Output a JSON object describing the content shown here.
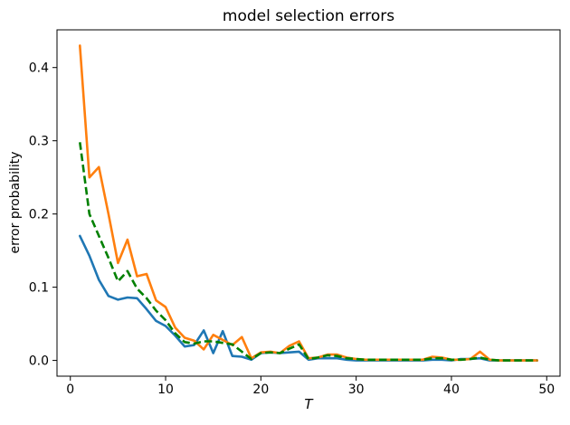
{
  "figure": {
    "title": "model selection errors",
    "xlabel": "T",
    "ylabel": "error probability"
  },
  "chart_data": {
    "type": "line",
    "title": "model selection errors",
    "xlabel": "T",
    "ylabel": "error probability",
    "grid": false,
    "legend": "none",
    "xlim": [
      -1.4,
      51.4
    ],
    "ylim": [
      -0.0215,
      0.4515
    ],
    "x_ticks": [
      0,
      10,
      20,
      30,
      40,
      50
    ],
    "x_tick_labels": [
      "0",
      "10",
      "20",
      "30",
      "40",
      "50"
    ],
    "y_ticks": [
      0.0,
      0.1,
      0.2,
      0.3,
      0.4
    ],
    "y_tick_labels": [
      "0.0",
      "0.1",
      "0.2",
      "0.3",
      "0.4"
    ],
    "x": [
      1,
      2,
      3,
      4,
      5,
      6,
      7,
      8,
      9,
      10,
      11,
      12,
      13,
      14,
      15,
      16,
      17,
      18,
      19,
      20,
      21,
      22,
      23,
      24,
      25,
      26,
      27,
      28,
      29,
      30,
      31,
      32,
      33,
      34,
      35,
      36,
      37,
      38,
      39,
      40,
      41,
      42,
      43,
      44,
      45,
      46,
      47,
      48,
      49
    ],
    "series": [
      {
        "name": "blue-solid",
        "color": "#1f77b4",
        "style": "solid",
        "values": [
          0.17,
          0.143,
          0.11,
          0.088,
          0.083,
          0.086,
          0.085,
          0.07,
          0.054,
          0.047,
          0.034,
          0.019,
          0.021,
          0.041,
          0.01,
          0.04,
          0.006,
          0.005,
          0.001,
          0.01,
          0.011,
          0.01,
          0.011,
          0.012,
          0.001,
          0.003,
          0.003,
          0.003,
          0.001,
          0.0,
          0.0,
          0.0,
          0.0,
          0.0,
          0.0,
          0.0,
          0.0,
          0.001,
          0.001,
          0.0,
          0.002,
          0.002,
          0.003,
          0.0,
          0.0,
          0.0,
          0.0,
          0.0,
          0.0
        ]
      },
      {
        "name": "orange-solid",
        "color": "#ff7f0e",
        "style": "solid",
        "values": [
          0.43,
          0.25,
          0.264,
          0.2,
          0.133,
          0.165,
          0.115,
          0.118,
          0.082,
          0.073,
          0.045,
          0.031,
          0.027,
          0.015,
          0.035,
          0.028,
          0.021,
          0.032,
          0.003,
          0.011,
          0.012,
          0.01,
          0.02,
          0.026,
          0.003,
          0.004,
          0.008,
          0.008,
          0.004,
          0.002,
          0.001,
          0.001,
          0.001,
          0.001,
          0.001,
          0.001,
          0.001,
          0.005,
          0.004,
          0.001,
          0.001,
          0.002,
          0.012,
          0.001,
          0.0,
          0.0,
          0.0,
          0.0,
          0.0
        ]
      },
      {
        "name": "green-dashed",
        "color": "#008000",
        "style": "dashed",
        "values": [
          0.298,
          0.2,
          0.17,
          0.14,
          0.108,
          0.122,
          0.098,
          0.085,
          0.068,
          0.055,
          0.037,
          0.025,
          0.023,
          0.026,
          0.026,
          0.024,
          0.022,
          0.012,
          0.002,
          0.01,
          0.011,
          0.01,
          0.016,
          0.022,
          0.002,
          0.004,
          0.007,
          0.006,
          0.003,
          0.002,
          0.001,
          0.001,
          0.001,
          0.001,
          0.001,
          0.001,
          0.001,
          0.003,
          0.003,
          0.001,
          0.001,
          0.002,
          0.004,
          0.001,
          0.0,
          0.0,
          0.0,
          0.0,
          0.0
        ]
      }
    ],
    "colors": {
      "spine": "#000000",
      "text": "#000000",
      "background": "#ffffff"
    }
  }
}
